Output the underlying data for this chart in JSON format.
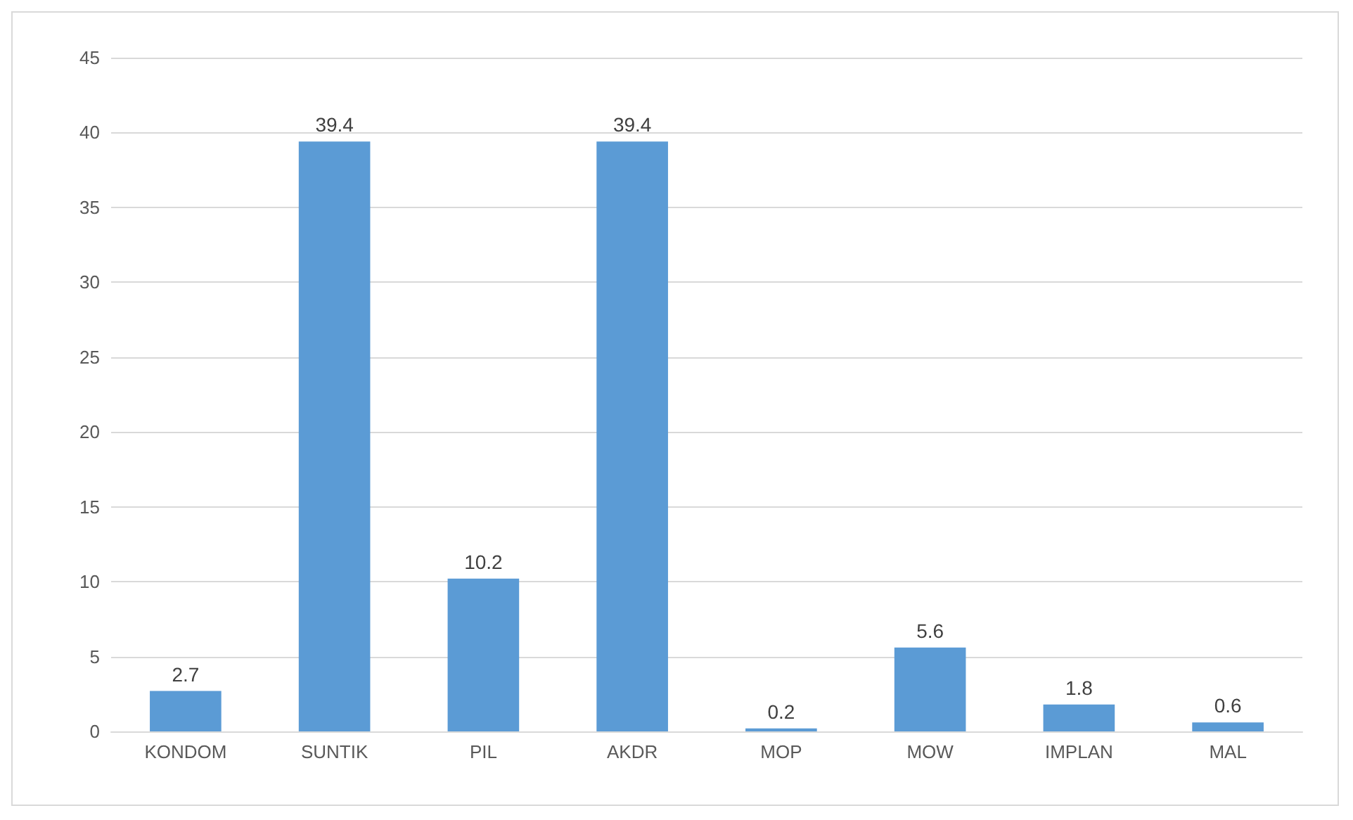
{
  "chart_data": {
    "type": "bar",
    "categories": [
      "KONDOM",
      "SUNTIK",
      "PIL",
      "AKDR",
      "MOP",
      "MOW",
      "IMPLAN",
      "MAL"
    ],
    "values": [
      2.7,
      39.4,
      10.2,
      39.4,
      0.2,
      5.6,
      1.8,
      0.6
    ],
    "color": "#5b9bd5",
    "ylim": [
      0,
      45
    ],
    "yticks": [
      0,
      5,
      10,
      15,
      20,
      25,
      30,
      35,
      40,
      45
    ],
    "grid": "y",
    "data_labels": true
  }
}
